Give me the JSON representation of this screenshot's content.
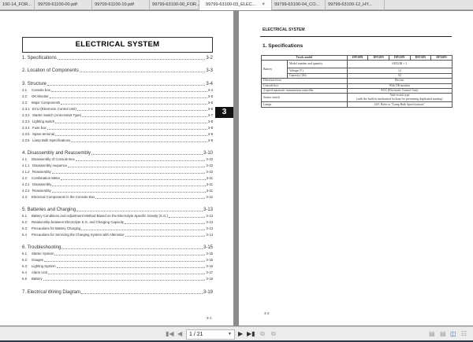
{
  "tabs": [
    {
      "label": "100-14_FOR...",
      "active": false
    },
    {
      "label": "99709-61100-00.pdf",
      "active": false
    },
    {
      "label": "99709-61100-10.pdf",
      "active": false
    },
    {
      "label": "99799-63100-00_FOR...",
      "active": false
    },
    {
      "label": "99799-63100-03_ELEC...",
      "active": true,
      "close": "×"
    },
    {
      "label": "99799-63100-04_CO...",
      "active": false
    },
    {
      "label": "99799-63100-12_HY...",
      "active": false
    }
  ],
  "left_page": {
    "title": "ELECTRICAL SYSTEM",
    "chapter_tab": "3",
    "page_number": "3-1",
    "toc": [
      {
        "level": "main",
        "label": "1. Specifications",
        "page": "3-2"
      },
      {
        "level": "main",
        "label": "2. Location of Components",
        "page": "3-3"
      },
      {
        "level": "main",
        "label": "3. Structure",
        "page": "3-4"
      },
      {
        "level": "sub",
        "num": "3.1",
        "label": "Console box",
        "page": "3-4"
      },
      {
        "level": "sub",
        "num": "3.2",
        "label": "OK Monitor",
        "page": "3-5"
      },
      {
        "level": "sub",
        "num": "3.3",
        "label": "Major Components",
        "page": "3-6"
      },
      {
        "level": "sub",
        "num": "3.3.1",
        "label": "ECU (Electronic Control Unit)",
        "page": "3-6"
      },
      {
        "level": "sub",
        "num": "3.3.2",
        "label": "Starter Switch (Anti-restart Type)",
        "page": "3-7"
      },
      {
        "level": "sub",
        "num": "3.3.3",
        "label": "Lighting switch",
        "page": "3-8"
      },
      {
        "level": "sub",
        "num": "3.3.4",
        "label": "Fuse box",
        "page": "3-8"
      },
      {
        "level": "sub",
        "num": "3.3.5",
        "label": "Spare terminal",
        "page": "3-9"
      },
      {
        "level": "sub",
        "num": "3.3.6",
        "label": "Lamp Bulb Specifications",
        "page": "3-9"
      },
      {
        "level": "main",
        "label": "4. Disassembly and Reassembly",
        "page": "3-10"
      },
      {
        "level": "sub",
        "num": "4.1",
        "label": "Disassembly of Console Box",
        "page": "3-10"
      },
      {
        "level": "sub",
        "num": "4.1.1",
        "label": "Disassembly sequence",
        "page": "3-10"
      },
      {
        "level": "sub",
        "num": "4.1.2",
        "label": "Reassembly",
        "page": "3-10"
      },
      {
        "level": "sub",
        "num": "4.2",
        "label": "Combination Meter",
        "page": "3-11"
      },
      {
        "level": "sub",
        "num": "4.2.1",
        "label": "Disassembly",
        "page": "3-11"
      },
      {
        "level": "sub",
        "num": "4.2.2",
        "label": "Reassembly",
        "page": "3-11"
      },
      {
        "level": "sub",
        "num": "4.3",
        "label": "Electrical Components in the Console Box",
        "page": "3-12"
      },
      {
        "level": "main",
        "label": "5. Batteries and Charging",
        "page": "3-13"
      },
      {
        "level": "sub",
        "num": "5.1",
        "label": "Battery Conditions and Adjustment Method Based on the Electrolyte Specific Gravity (S.G.)",
        "page": "3-13"
      },
      {
        "level": "sub",
        "num": "5.2",
        "label": "Relationship between Electrolyte S.G. and Charging Capacity",
        "page": "3-13"
      },
      {
        "level": "sub",
        "num": "5.3",
        "label": "Precautions for Battery Charging",
        "page": "3-13"
      },
      {
        "level": "sub",
        "num": "5.4",
        "label": "Precautions for Servicing the Charging System with Alternator",
        "page": "3-14"
      },
      {
        "level": "main",
        "label": "6. Troubleshooting",
        "page": "3-15"
      },
      {
        "level": "sub",
        "num": "6.1",
        "label": "Starter System",
        "page": "3-15"
      },
      {
        "level": "sub",
        "num": "6.2",
        "label": "Gauges",
        "page": "3-15"
      },
      {
        "level": "sub",
        "num": "6.3",
        "label": "Lighting System",
        "page": "3-16"
      },
      {
        "level": "sub",
        "num": "6.4",
        "label": "Alarm Unit",
        "page": "3-17"
      },
      {
        "level": "sub",
        "num": "6.5",
        "label": "Battery",
        "page": "3-18"
      },
      {
        "level": "main",
        "label": "7. Electrical Wiring Diagram",
        "page": "3-19"
      }
    ]
  },
  "right_page": {
    "header": "ELECTRICAL SYSTEM",
    "section": "1. Specifications",
    "page_number": "3-2",
    "table": {
      "header_label": "Truck model",
      "models": [
        "DP100N",
        "DP110N",
        "DP120N",
        "DP130N",
        "DP160N"
      ],
      "battery_label": "Battery",
      "battery_rows": [
        {
          "label": "Model number and quantity",
          "value": "65D23R × 2"
        },
        {
          "label": "Voltage (V)",
          "value": "12"
        },
        {
          "label": "Capacity (Ah)",
          "value": "52"
        }
      ],
      "rows": [
        {
          "label": "Direction lever",
          "value": "Electric"
        },
        {
          "label": "Console box",
          "value": "With OK monitor"
        },
        {
          "label": "2-speed automatic transmission controller",
          "value": "ECU (Electronic Control Unit)"
        },
        {
          "label": "Starter switch",
          "value": "Anti-restart type",
          "value2": "(with the built-in mechanical lockout for preventing duplicated starting)"
        },
        {
          "label": "Lamps",
          "value": "24V; Refer to \"Lamp Bulb Specifications\""
        }
      ]
    }
  },
  "toolbar": {
    "page_field": "1 / 21",
    "icons": [
      "first-page",
      "previous-page",
      "next-page",
      "last-page",
      "rotate-left",
      "rotate-right",
      "single-page-view",
      "continuous-view",
      "two-page-view",
      "two-page-continuous-view"
    ],
    "active_view": "two-page-view"
  }
}
